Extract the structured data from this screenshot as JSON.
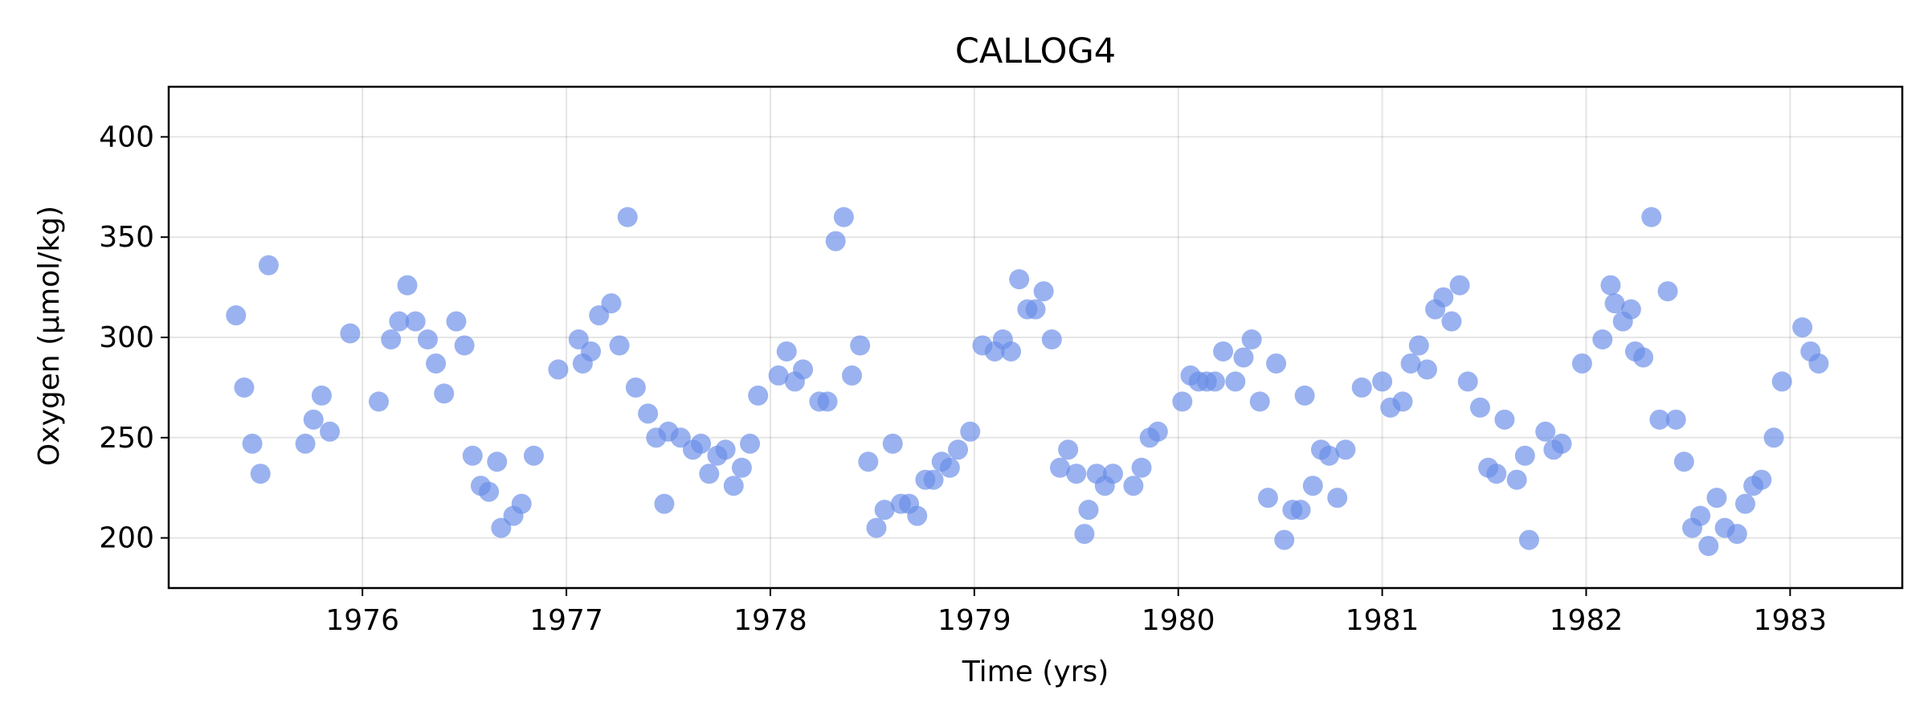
{
  "chart_data": {
    "type": "scatter",
    "title": "CALLOG4",
    "xlabel": "Time (yrs)",
    "ylabel": "Oxygen (µmol/kg)",
    "xlim": [
      1975.05,
      1983.55
    ],
    "ylim": [
      175,
      425
    ],
    "xticks": [
      1976,
      1977,
      1978,
      1979,
      1980,
      1981,
      1982,
      1983
    ],
    "yticks": [
      200,
      250,
      300,
      350,
      400
    ],
    "grid": true,
    "color": "#6a8ee8",
    "points": [
      [
        1975.38,
        311
      ],
      [
        1975.42,
        275
      ],
      [
        1975.46,
        247
      ],
      [
        1975.5,
        232
      ],
      [
        1975.54,
        336
      ],
      [
        1975.72,
        247
      ],
      [
        1975.76,
        259
      ],
      [
        1975.8,
        271
      ],
      [
        1975.84,
        253
      ],
      [
        1975.94,
        302
      ],
      [
        1976.08,
        268
      ],
      [
        1976.14,
        299
      ],
      [
        1976.18,
        308
      ],
      [
        1976.22,
        326
      ],
      [
        1976.26,
        308
      ],
      [
        1976.32,
        299
      ],
      [
        1976.36,
        287
      ],
      [
        1976.4,
        272
      ],
      [
        1976.46,
        308
      ],
      [
        1976.5,
        296
      ],
      [
        1976.54,
        241
      ],
      [
        1976.58,
        226
      ],
      [
        1976.62,
        223
      ],
      [
        1976.66,
        238
      ],
      [
        1976.68,
        205
      ],
      [
        1976.74,
        211
      ],
      [
        1976.78,
        217
      ],
      [
        1976.84,
        241
      ],
      [
        1976.96,
        284
      ],
      [
        1977.06,
        299
      ],
      [
        1977.08,
        287
      ],
      [
        1977.12,
        293
      ],
      [
        1977.16,
        311
      ],
      [
        1977.22,
        317
      ],
      [
        1977.26,
        296
      ],
      [
        1977.3,
        360
      ],
      [
        1977.34,
        275
      ],
      [
        1977.4,
        262
      ],
      [
        1977.44,
        250
      ],
      [
        1977.48,
        217
      ],
      [
        1977.5,
        253
      ],
      [
        1977.56,
        250
      ],
      [
        1977.62,
        244
      ],
      [
        1977.66,
        247
      ],
      [
        1977.7,
        232
      ],
      [
        1977.74,
        241
      ],
      [
        1977.78,
        244
      ],
      [
        1977.82,
        226
      ],
      [
        1977.86,
        235
      ],
      [
        1977.9,
        247
      ],
      [
        1977.94,
        271
      ],
      [
        1978.04,
        281
      ],
      [
        1978.08,
        293
      ],
      [
        1978.12,
        278
      ],
      [
        1978.16,
        284
      ],
      [
        1978.24,
        268
      ],
      [
        1978.28,
        268
      ],
      [
        1978.32,
        348
      ],
      [
        1978.36,
        360
      ],
      [
        1978.4,
        281
      ],
      [
        1978.44,
        296
      ],
      [
        1978.48,
        238
      ],
      [
        1978.52,
        205
      ],
      [
        1978.56,
        214
      ],
      [
        1978.6,
        247
      ],
      [
        1978.64,
        217
      ],
      [
        1978.68,
        217
      ],
      [
        1978.72,
        211
      ],
      [
        1978.76,
        229
      ],
      [
        1978.8,
        229
      ],
      [
        1978.84,
        238
      ],
      [
        1978.88,
        235
      ],
      [
        1978.92,
        244
      ],
      [
        1978.98,
        253
      ],
      [
        1979.04,
        296
      ],
      [
        1979.1,
        293
      ],
      [
        1979.14,
        299
      ],
      [
        1979.18,
        293
      ],
      [
        1979.22,
        329
      ],
      [
        1979.26,
        314
      ],
      [
        1979.3,
        314
      ],
      [
        1979.34,
        323
      ],
      [
        1979.38,
        299
      ],
      [
        1979.42,
        235
      ],
      [
        1979.46,
        244
      ],
      [
        1979.5,
        232
      ],
      [
        1979.54,
        202
      ],
      [
        1979.56,
        214
      ],
      [
        1979.6,
        232
      ],
      [
        1979.64,
        226
      ],
      [
        1979.68,
        232
      ],
      [
        1979.78,
        226
      ],
      [
        1979.82,
        235
      ],
      [
        1979.86,
        250
      ],
      [
        1979.9,
        253
      ],
      [
        1980.02,
        268
      ],
      [
        1980.06,
        281
      ],
      [
        1980.1,
        278
      ],
      [
        1980.14,
        278
      ],
      [
        1980.18,
        278
      ],
      [
        1980.22,
        293
      ],
      [
        1980.28,
        278
      ],
      [
        1980.32,
        290
      ],
      [
        1980.36,
        299
      ],
      [
        1980.4,
        268
      ],
      [
        1980.44,
        220
      ],
      [
        1980.48,
        287
      ],
      [
        1980.52,
        199
      ],
      [
        1980.56,
        214
      ],
      [
        1980.6,
        214
      ],
      [
        1980.62,
        271
      ],
      [
        1980.66,
        226
      ],
      [
        1980.7,
        244
      ],
      [
        1980.74,
        241
      ],
      [
        1980.78,
        220
      ],
      [
        1980.82,
        244
      ],
      [
        1980.9,
        275
      ],
      [
        1981.0,
        278
      ],
      [
        1981.04,
        265
      ],
      [
        1981.1,
        268
      ],
      [
        1981.14,
        287
      ],
      [
        1981.18,
        296
      ],
      [
        1981.22,
        284
      ],
      [
        1981.26,
        314
      ],
      [
        1981.3,
        320
      ],
      [
        1981.34,
        308
      ],
      [
        1981.38,
        326
      ],
      [
        1981.42,
        278
      ],
      [
        1981.48,
        265
      ],
      [
        1981.52,
        235
      ],
      [
        1981.56,
        232
      ],
      [
        1981.6,
        259
      ],
      [
        1981.66,
        229
      ],
      [
        1981.7,
        241
      ],
      [
        1981.72,
        199
      ],
      [
        1981.8,
        253
      ],
      [
        1981.84,
        244
      ],
      [
        1981.88,
        247
      ],
      [
        1981.98,
        287
      ],
      [
        1982.08,
        299
      ],
      [
        1982.12,
        326
      ],
      [
        1982.14,
        317
      ],
      [
        1982.18,
        308
      ],
      [
        1982.22,
        314
      ],
      [
        1982.24,
        293
      ],
      [
        1982.28,
        290
      ],
      [
        1982.32,
        360
      ],
      [
        1982.36,
        259
      ],
      [
        1982.4,
        323
      ],
      [
        1982.44,
        259
      ],
      [
        1982.48,
        238
      ],
      [
        1982.52,
        205
      ],
      [
        1982.56,
        211
      ],
      [
        1982.6,
        196
      ],
      [
        1982.64,
        220
      ],
      [
        1982.68,
        205
      ],
      [
        1982.74,
        202
      ],
      [
        1982.78,
        217
      ],
      [
        1982.82,
        226
      ],
      [
        1982.86,
        229
      ],
      [
        1982.92,
        250
      ],
      [
        1982.96,
        278
      ],
      [
        1983.06,
        305
      ],
      [
        1983.1,
        293
      ],
      [
        1983.14,
        287
      ]
    ]
  }
}
